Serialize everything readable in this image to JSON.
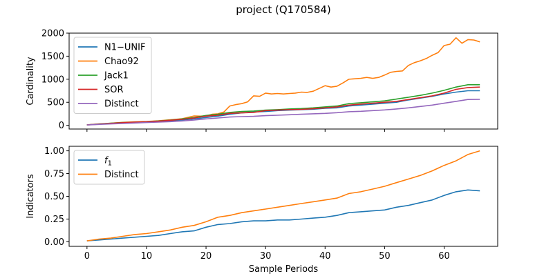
{
  "title": "project (Q170584)",
  "chart_data": [
    {
      "type": "line",
      "ylabel": "Cardinality",
      "xlabel": "",
      "xlim": [
        -3,
        69
      ],
      "ylim": [
        -80,
        2000
      ],
      "xticks": [
        0,
        10,
        20,
        30,
        40,
        50,
        60
      ],
      "yticks": [
        0,
        500,
        1000,
        1500,
        2000
      ],
      "ytick_labels": [
        "0",
        "500",
        "1000",
        "1500",
        "2000"
      ],
      "grid": false,
      "legend_position": "upper-left",
      "series": [
        {
          "name": "N1−UNIF",
          "color": "#1f77b4",
          "x": [
            0,
            2,
            4,
            6,
            8,
            10,
            12,
            14,
            16,
            18,
            20,
            22,
            24,
            26,
            28,
            30,
            32,
            34,
            36,
            38,
            40,
            42,
            44,
            46,
            48,
            50,
            52,
            54,
            56,
            58,
            60,
            62,
            64,
            66
          ],
          "y": [
            10,
            25,
            40,
            55,
            65,
            75,
            85,
            100,
            115,
            140,
            170,
            200,
            240,
            270,
            290,
            300,
            320,
            330,
            340,
            350,
            370,
            380,
            420,
            440,
            460,
            480,
            500,
            550,
            590,
            630,
            680,
            720,
            750,
            750
          ]
        },
        {
          "name": "Chao92",
          "color": "#ff7f0e",
          "x": [
            0,
            2,
            4,
            6,
            8,
            10,
            12,
            14,
            16,
            18,
            19,
            20,
            21,
            22,
            23,
            24,
            25,
            26,
            27,
            28,
            29,
            30,
            31,
            32,
            33,
            34,
            35,
            36,
            37,
            38,
            39,
            40,
            41,
            42,
            43,
            44,
            45,
            46,
            47,
            48,
            49,
            50,
            51,
            52,
            53,
            54,
            55,
            56,
            57,
            58,
            59,
            60,
            61,
            62,
            63,
            64,
            65,
            66
          ],
          "y": [
            10,
            25,
            45,
            65,
            75,
            85,
            100,
            120,
            145,
            205,
            200,
            205,
            240,
            250,
            290,
            420,
            450,
            470,
            510,
            640,
            630,
            700,
            680,
            690,
            680,
            690,
            700,
            720,
            715,
            740,
            800,
            860,
            830,
            850,
            920,
            1000,
            1010,
            1020,
            1040,
            1020,
            1040,
            1090,
            1150,
            1170,
            1180,
            1300,
            1360,
            1400,
            1450,
            1520,
            1580,
            1730,
            1760,
            1900,
            1780,
            1860,
            1850,
            1810
          ]
        },
        {
          "name": "Jack1",
          "color": "#2ca02c",
          "x": [
            0,
            2,
            4,
            6,
            8,
            10,
            12,
            14,
            16,
            18,
            20,
            22,
            24,
            26,
            28,
            30,
            32,
            34,
            36,
            38,
            40,
            42,
            44,
            46,
            48,
            50,
            52,
            54,
            56,
            58,
            60,
            62,
            64,
            66
          ],
          "y": [
            10,
            30,
            45,
            60,
            70,
            80,
            95,
            115,
            140,
            170,
            215,
            240,
            280,
            300,
            310,
            330,
            340,
            355,
            365,
            380,
            400,
            420,
            470,
            490,
            510,
            530,
            570,
            610,
            650,
            700,
            760,
            830,
            880,
            880
          ]
        },
        {
          "name": "SOR",
          "color": "#d62728",
          "x": [
            0,
            2,
            4,
            6,
            8,
            10,
            12,
            14,
            16,
            18,
            20,
            22,
            24,
            26,
            28,
            30,
            32,
            34,
            36,
            38,
            40,
            42,
            44,
            46,
            48,
            50,
            52,
            54,
            56,
            58,
            60,
            62,
            64,
            66
          ],
          "y": [
            10,
            28,
            42,
            58,
            68,
            78,
            90,
            110,
            130,
            160,
            200,
            220,
            260,
            270,
            280,
            320,
            330,
            340,
            345,
            360,
            380,
            400,
            440,
            460,
            480,
            500,
            520,
            560,
            600,
            640,
            700,
            780,
            820,
            830
          ]
        },
        {
          "name": "Distinct",
          "color": "#9467bd",
          "x": [
            0,
            2,
            4,
            6,
            8,
            10,
            12,
            14,
            16,
            18,
            20,
            22,
            24,
            26,
            28,
            30,
            32,
            34,
            36,
            38,
            40,
            42,
            44,
            46,
            48,
            50,
            52,
            54,
            56,
            58,
            60,
            62,
            64,
            66
          ],
          "y": [
            8,
            20,
            30,
            40,
            50,
            60,
            70,
            80,
            95,
            115,
            140,
            160,
            180,
            190,
            195,
            210,
            220,
            230,
            240,
            250,
            260,
            275,
            295,
            305,
            320,
            335,
            355,
            380,
            410,
            440,
            480,
            520,
            560,
            565
          ]
        }
      ]
    },
    {
      "type": "line",
      "ylabel": "Indicators",
      "xlabel": "Sample Periods",
      "xlim": [
        -3,
        69
      ],
      "ylim": [
        -0.05,
        1.05
      ],
      "xticks": [
        0,
        10,
        20,
        30,
        40,
        50,
        60
      ],
      "xtick_labels": [
        "0",
        "10",
        "20",
        "30",
        "40",
        "50",
        "60"
      ],
      "yticks": [
        0.0,
        0.25,
        0.5,
        0.75,
        1.0
      ],
      "ytick_labels": [
        "0.00",
        "0.25",
        "0.50",
        "0.75",
        "1.00"
      ],
      "grid": false,
      "legend_position": "upper-left",
      "series": [
        {
          "name": "f1",
          "color": "#1f77b4",
          "x": [
            0,
            2,
            4,
            6,
            8,
            10,
            12,
            14,
            16,
            18,
            20,
            22,
            24,
            26,
            28,
            30,
            32,
            34,
            36,
            38,
            40,
            42,
            44,
            46,
            48,
            50,
            52,
            54,
            56,
            58,
            60,
            62,
            64,
            66
          ],
          "y": [
            0.01,
            0.02,
            0.03,
            0.04,
            0.05,
            0.06,
            0.07,
            0.09,
            0.11,
            0.12,
            0.16,
            0.19,
            0.2,
            0.22,
            0.23,
            0.23,
            0.24,
            0.24,
            0.25,
            0.26,
            0.27,
            0.29,
            0.32,
            0.33,
            0.34,
            0.35,
            0.38,
            0.4,
            0.43,
            0.46,
            0.51,
            0.55,
            0.57,
            0.56
          ]
        },
        {
          "name": "Distinct",
          "color": "#ff7f0e",
          "x": [
            0,
            2,
            4,
            6,
            8,
            10,
            12,
            14,
            16,
            18,
            20,
            22,
            24,
            26,
            28,
            30,
            32,
            34,
            36,
            38,
            40,
            42,
            44,
            46,
            48,
            50,
            52,
            54,
            56,
            58,
            60,
            62,
            64,
            66
          ],
          "y": [
            0.01,
            0.03,
            0.04,
            0.06,
            0.08,
            0.09,
            0.11,
            0.13,
            0.16,
            0.18,
            0.22,
            0.27,
            0.29,
            0.32,
            0.34,
            0.36,
            0.38,
            0.4,
            0.42,
            0.44,
            0.46,
            0.48,
            0.53,
            0.55,
            0.58,
            0.61,
            0.65,
            0.69,
            0.73,
            0.78,
            0.84,
            0.89,
            0.96,
            1.0
          ]
        }
      ]
    }
  ]
}
